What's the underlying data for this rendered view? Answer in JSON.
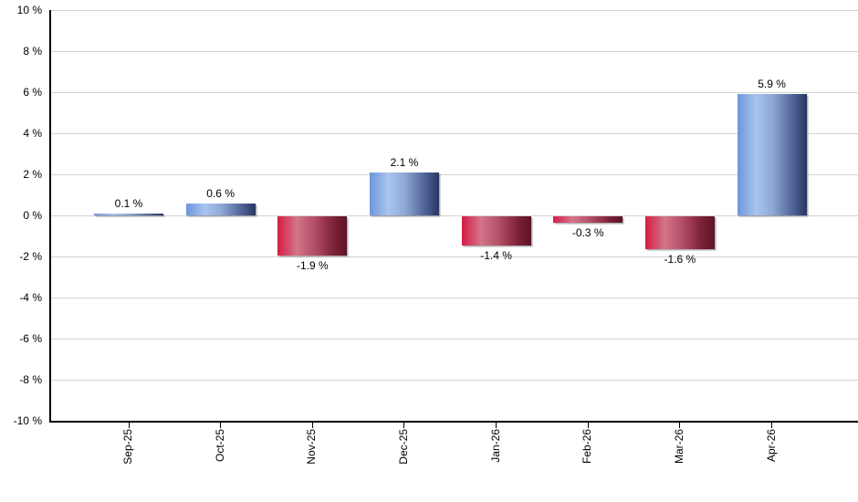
{
  "chart_data": {
    "type": "bar",
    "title": "",
    "xlabel": "",
    "ylabel": "",
    "categories": [
      "Sep-25",
      "Oct-25",
      "Nov-25",
      "Dec-25",
      "Jan-26",
      "Feb-26",
      "Mar-26",
      "Apr-26"
    ],
    "values": [
      0.1,
      0.6,
      -1.9,
      2.1,
      -1.4,
      -0.3,
      -1.6,
      5.9
    ],
    "bar_value_labels": [
      "0.1 %",
      "0.6 %",
      "-1.9 %",
      "2.1 %",
      "-1.4 %",
      "-0.3 %",
      "-1.6 %",
      "5.9 %"
    ],
    "y_tick_values": [
      10,
      8,
      6,
      4,
      2,
      0,
      -2,
      -4,
      -6,
      -8,
      -10
    ],
    "y_tick_labels": [
      "10 %",
      "8 %",
      "6 %",
      "4 %",
      "2 %",
      "0 %",
      "-2 %",
      "-4 %",
      "-6 %",
      "-8 %",
      "-10 %"
    ],
    "ylim": [
      -10,
      10
    ],
    "grid": true,
    "legend": "none",
    "colors": {
      "positive_bar_gradient": [
        "#6E96DC",
        "#A9C4EE",
        "#8FA9D6",
        "#53689B",
        "#273661"
      ],
      "negative_bar_gradient": [
        "#D51C45",
        "#D4758A",
        "#B04B63",
        "#7E2338",
        "#5C1424"
      ],
      "gridline": "#D2D2D2",
      "axis": "#000000",
      "text": "#000000",
      "background": "#FFFFFF"
    }
  }
}
